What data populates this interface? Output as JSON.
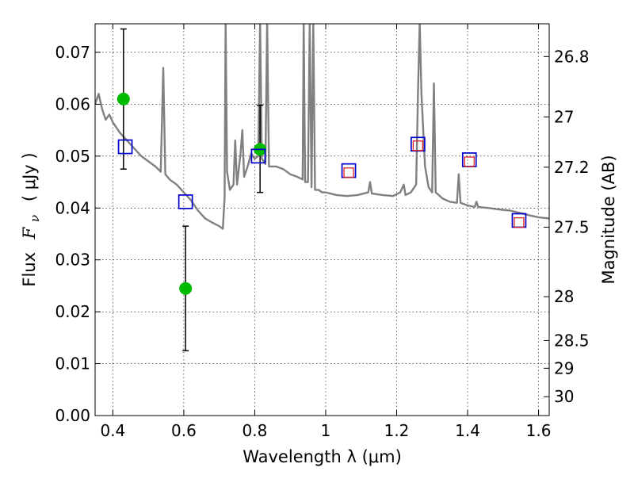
{
  "chart_data": {
    "type": "scatter",
    "title": "",
    "xlabel": "Wavelength  λ (μm)",
    "ylabel": "Flux  F_ν ( μJy )",
    "ylabel_parts": [
      "Flux",
      "F",
      "ν",
      "( μJy )"
    ],
    "y2label": "Magnitude (AB)",
    "xlim": [
      0.35,
      1.63
    ],
    "ylim": [
      0.0,
      0.0755
    ],
    "grid": true,
    "x_ticks": [
      {
        "value": 0.4,
        "label": "0.4"
      },
      {
        "value": 0.6,
        "label": "0.6"
      },
      {
        "value": 0.8,
        "label": "0.8"
      },
      {
        "value": 1.0,
        "label": "1"
      },
      {
        "value": 1.2,
        "label": "1.2"
      },
      {
        "value": 1.4,
        "label": "1.4"
      },
      {
        "value": 1.6,
        "label": "1.6"
      }
    ],
    "y_ticks": [
      {
        "value": 0.0,
        "label": "0.00"
      },
      {
        "value": 0.01,
        "label": "0.01"
      },
      {
        "value": 0.02,
        "label": "0.02"
      },
      {
        "value": 0.03,
        "label": "0.03"
      },
      {
        "value": 0.04,
        "label": "0.04"
      },
      {
        "value": 0.05,
        "label": "0.05"
      },
      {
        "value": 0.06,
        "label": "0.06"
      },
      {
        "value": 0.07,
        "label": "0.07"
      }
    ],
    "y2_ticks": [
      {
        "value": 26.8,
        "label": "26.8"
      },
      {
        "value": 27.0,
        "label": "27"
      },
      {
        "value": 27.2,
        "label": "27.2"
      },
      {
        "value": 27.5,
        "label": "27.5"
      },
      {
        "value": 28.0,
        "label": "28"
      },
      {
        "value": 28.5,
        "label": "28.5"
      },
      {
        "value": 29.0,
        "label": "29"
      },
      {
        "value": 30.0,
        "label": "30"
      }
    ],
    "series": [
      {
        "kind": "line",
        "color": "#808080",
        "points": [
          [
            0.35,
            0.06
          ],
          [
            0.36,
            0.062
          ],
          [
            0.37,
            0.059
          ],
          [
            0.38,
            0.057
          ],
          [
            0.39,
            0.058
          ],
          [
            0.4,
            0.0565
          ],
          [
            0.41,
            0.0555
          ],
          [
            0.42,
            0.0545
          ],
          [
            0.44,
            0.053
          ],
          [
            0.46,
            0.0515
          ],
          [
            0.48,
            0.05
          ],
          [
            0.5,
            0.049
          ],
          [
            0.52,
            0.048
          ],
          [
            0.535,
            0.047
          ],
          [
            0.542,
            0.067
          ],
          [
            0.548,
            0.0465
          ],
          [
            0.56,
            0.0455
          ],
          [
            0.58,
            0.0445
          ],
          [
            0.6,
            0.043
          ],
          [
            0.62,
            0.0415
          ],
          [
            0.64,
            0.0395
          ],
          [
            0.66,
            0.038
          ],
          [
            0.68,
            0.0372
          ],
          [
            0.7,
            0.0365
          ],
          [
            0.71,
            0.036
          ],
          [
            0.715,
            0.042
          ],
          [
            0.718,
            0.076
          ],
          [
            0.722,
            0.047
          ],
          [
            0.73,
            0.0435
          ],
          [
            0.74,
            0.0445
          ],
          [
            0.745,
            0.053
          ],
          [
            0.75,
            0.0445
          ],
          [
            0.76,
            0.0505
          ],
          [
            0.765,
            0.055
          ],
          [
            0.77,
            0.046
          ],
          [
            0.78,
            0.048
          ],
          [
            0.79,
            0.0505
          ],
          [
            0.8,
            0.0495
          ],
          [
            0.81,
            0.05
          ],
          [
            0.815,
            0.076
          ],
          [
            0.82,
            0.0495
          ],
          [
            0.83,
            0.0485
          ],
          [
            0.835,
            0.076
          ],
          [
            0.84,
            0.048
          ],
          [
            0.86,
            0.048
          ],
          [
            0.88,
            0.0475
          ],
          [
            0.9,
            0.0465
          ],
          [
            0.92,
            0.046
          ],
          [
            0.935,
            0.0455
          ],
          [
            0.938,
            0.076
          ],
          [
            0.942,
            0.045
          ],
          [
            0.95,
            0.045
          ],
          [
            0.955,
            0.076
          ],
          [
            0.96,
            0.044
          ],
          [
            0.965,
            0.076
          ],
          [
            0.97,
            0.0435
          ],
          [
            0.98,
            0.0435
          ],
          [
            0.99,
            0.043
          ],
          [
            1.0,
            0.043
          ],
          [
            1.03,
            0.0425
          ],
          [
            1.06,
            0.0423
          ],
          [
            1.09,
            0.0425
          ],
          [
            1.12,
            0.043
          ],
          [
            1.125,
            0.045
          ],
          [
            1.13,
            0.0428
          ],
          [
            1.16,
            0.0425
          ],
          [
            1.19,
            0.0423
          ],
          [
            1.21,
            0.043
          ],
          [
            1.22,
            0.0445
          ],
          [
            1.225,
            0.0425
          ],
          [
            1.24,
            0.043
          ],
          [
            1.255,
            0.0445
          ],
          [
            1.26,
            0.062
          ],
          [
            1.265,
            0.076
          ],
          [
            1.27,
            0.062
          ],
          [
            1.28,
            0.048
          ],
          [
            1.29,
            0.044
          ],
          [
            1.3,
            0.043
          ],
          [
            1.305,
            0.064
          ],
          [
            1.31,
            0.043
          ],
          [
            1.33,
            0.0418
          ],
          [
            1.35,
            0.0412
          ],
          [
            1.37,
            0.041
          ],
          [
            1.375,
            0.0465
          ],
          [
            1.38,
            0.041
          ],
          [
            1.4,
            0.0405
          ],
          [
            1.42,
            0.0402
          ],
          [
            1.425,
            0.0412
          ],
          [
            1.43,
            0.0402
          ],
          [
            1.46,
            0.04
          ],
          [
            1.49,
            0.0397
          ],
          [
            1.52,
            0.0395
          ],
          [
            1.55,
            0.039
          ],
          [
            1.58,
            0.0385
          ],
          [
            1.6,
            0.0382
          ],
          [
            1.63,
            0.038
          ]
        ]
      },
      {
        "kind": "errorbar",
        "color": "#00bb00",
        "points": [
          {
            "x": 0.43,
            "y": 0.061,
            "ylo": 0.0475,
            "yhi": 0.0745
          },
          {
            "x": 0.605,
            "y": 0.0245,
            "ylo": 0.0125,
            "yhi": 0.0365
          },
          {
            "x": 0.815,
            "y": 0.0513,
            "ylo": 0.043,
            "yhi": 0.0598
          }
        ]
      },
      {
        "kind": "square",
        "color": "#0000cc",
        "size": "large",
        "points": [
          [
            0.435,
            0.0518
          ],
          [
            0.605,
            0.0412
          ],
          [
            0.81,
            0.05
          ],
          [
            1.065,
            0.0472
          ],
          [
            1.26,
            0.0523
          ],
          [
            1.405,
            0.0493
          ],
          [
            1.545,
            0.0376
          ]
        ]
      },
      {
        "kind": "square",
        "color": "#dd2222",
        "size": "small",
        "points": [
          [
            1.065,
            0.0468
          ],
          [
            1.26,
            0.052
          ],
          [
            1.405,
            0.0489
          ],
          [
            1.545,
            0.0372
          ]
        ]
      }
    ]
  }
}
